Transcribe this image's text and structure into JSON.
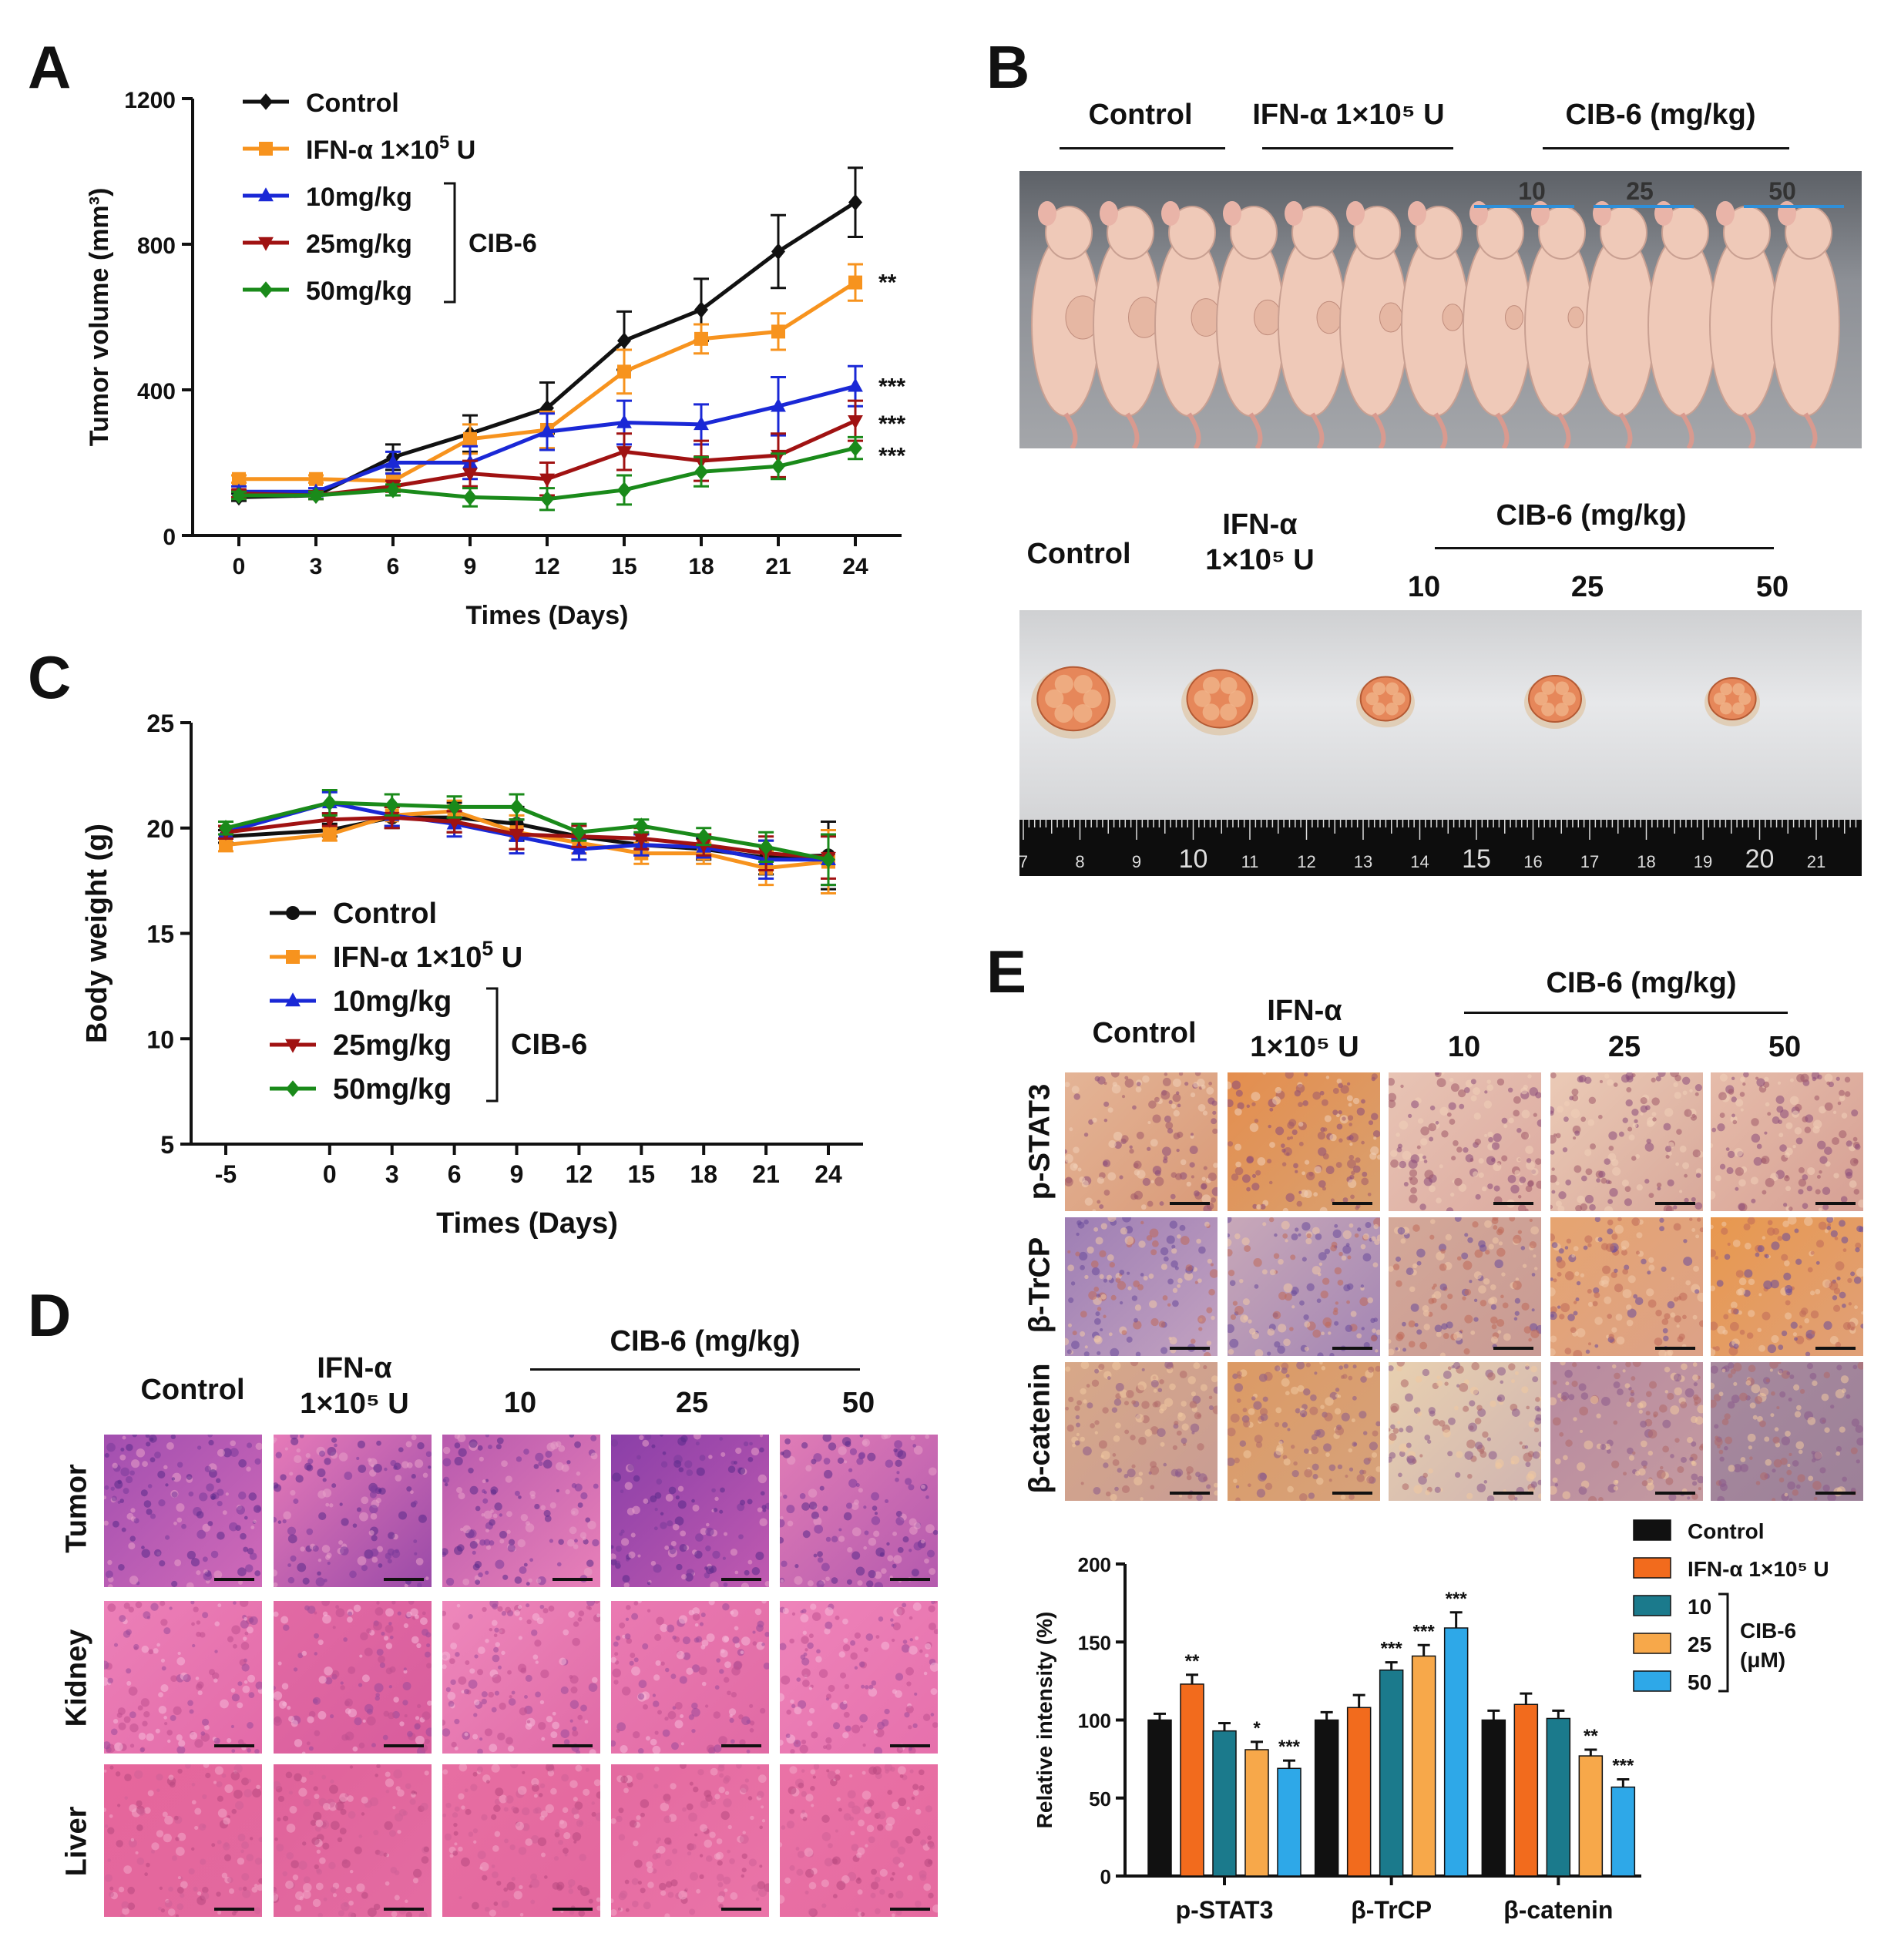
{
  "panels": {
    "A": {
      "letter": "A",
      "chart_data": {
        "type": "line",
        "xlabel": "Times (Days)",
        "ylabel": "Tumor volume (mm³)",
        "x": [
          0,
          3,
          6,
          9,
          12,
          15,
          18,
          21,
          24
        ],
        "xticks": [
          "0",
          "3",
          "6",
          "9",
          "12",
          "15",
          "18",
          "21",
          "24"
        ],
        "yticks": [
          "0",
          "400",
          "800",
          "1200"
        ],
        "ylim": [
          0,
          1200
        ],
        "grid": false,
        "legend_position": "top-left",
        "bracket_label": "CIB-6",
        "series": [
          {
            "name": "Control",
            "color": "#111111",
            "marker": "diamond",
            "values": [
              105,
              110,
              215,
              280,
              350,
              535,
              620,
              780,
              915
            ],
            "err": [
              10,
              10,
              35,
              50,
              70,
              80,
              85,
              100,
              95
            ]
          },
          {
            "name_main": "IFN-α 1×10",
            "name_sup": "5",
            "name_tail": " U",
            "color": "#f7931e",
            "marker": "square",
            "values": [
              155,
              155,
              150,
              265,
              290,
              450,
              540,
              560,
              695
            ],
            "err": [
              10,
              10,
              20,
              40,
              50,
              60,
              40,
              50,
              50
            ]
          },
          {
            "name": "10mg/kg",
            "color": "#1a28d6",
            "marker": "triangle",
            "values": [
              120,
              120,
              200,
              200,
              285,
              310,
              305,
              355,
              410
            ],
            "err": [
              15,
              10,
              30,
              45,
              50,
              60,
              55,
              80,
              55
            ]
          },
          {
            "name": "25mg/kg",
            "color": "#a01212",
            "marker": "triangle-down",
            "values": [
              115,
              110,
              135,
              170,
              155,
              230,
              205,
              220,
              315
            ],
            "err": [
              10,
              10,
              15,
              35,
              45,
              50,
              55,
              60,
              55
            ]
          },
          {
            "name": "50mg/kg",
            "color": "#1a8a1a",
            "marker": "diamond",
            "values": [
              110,
              110,
              125,
              105,
              100,
              125,
              175,
              190,
              240
            ],
            "err": [
              10,
              10,
              15,
              25,
              30,
              40,
              40,
              35,
              30
            ]
          }
        ],
        "significance": [
          "**",
          "***",
          "***",
          "***"
        ]
      }
    },
    "B": {
      "letter": "B",
      "top_headers": [
        "Control",
        "IFN-α 1×10⁵ U",
        "CIB-6 (mg/kg)"
      ],
      "dose_labels": [
        "10",
        "25",
        "50"
      ],
      "bottom_headers": {
        "control": "Control",
        "ifn_line1": "IFN-α",
        "ifn_line2": "1×10⁵ U",
        "cib": "CIB-6 (mg/kg)"
      },
      "bottom_doses": [
        "10",
        "25",
        "50"
      ],
      "ruler_numbers": [
        "7",
        "8",
        "9",
        "10",
        "11",
        "12",
        "13",
        "14",
        "15",
        "16",
        "17",
        "18",
        "19",
        "20",
        "21"
      ]
    },
    "C": {
      "letter": "C",
      "chart_data": {
        "type": "line",
        "xlabel": "Times (Days)",
        "ylabel": "Body weight (g)",
        "x": [
          -5,
          0,
          3,
          6,
          9,
          12,
          15,
          18,
          21,
          24
        ],
        "xticks": [
          "-5",
          "0",
          "3",
          "6",
          "9",
          "12",
          "15",
          "18",
          "21",
          "24"
        ],
        "yticks": [
          "5",
          "10",
          "15",
          "20",
          "25"
        ],
        "ylim": [
          5,
          25
        ],
        "grid": false,
        "legend_position": "bottom-left",
        "bracket_label": "CIB-6",
        "series": [
          {
            "name": "Control",
            "color": "#111111",
            "marker": "circle",
            "values": [
              19.6,
              19.9,
              20.5,
              20.5,
              20.2,
              19.6,
              19.2,
              19.0,
              18.6,
              18.7
            ],
            "err": [
              0.3,
              0.3,
              0.5,
              0.7,
              0.8,
              0.5,
              0.5,
              0.5,
              0.8,
              1.6
            ]
          },
          {
            "name_main": "IFN-α 1×10",
            "name_sup": "5",
            "name_tail": " U",
            "color": "#f7931e",
            "marker": "square",
            "values": [
              19.2,
              19.7,
              20.6,
              20.8,
              19.8,
              19.3,
              18.8,
              18.8,
              18.1,
              18.4
            ],
            "err": [
              0.3,
              0.3,
              0.5,
              0.5,
              0.8,
              0.5,
              0.5,
              0.5,
              0.8,
              1.5
            ]
          },
          {
            "name": "10mg/kg",
            "color": "#1a28d6",
            "marker": "triangle",
            "values": [
              19.8,
              21.2,
              20.6,
              20.2,
              19.6,
              19.0,
              19.2,
              19.1,
              18.5,
              18.5
            ],
            "err": [
              0.3,
              0.5,
              0.5,
              0.6,
              0.8,
              0.5,
              0.5,
              0.5,
              0.9,
              1.2
            ]
          },
          {
            "name": "25mg/kg",
            "color": "#a01212",
            "marker": "triangle-down",
            "values": [
              19.8,
              20.4,
              20.5,
              20.3,
              19.7,
              19.6,
              19.5,
              19.2,
              18.8,
              18.6
            ],
            "err": [
              0.3,
              0.3,
              0.5,
              0.5,
              0.7,
              0.5,
              0.5,
              0.5,
              0.8,
              1.0
            ]
          },
          {
            "name": "50mg/kg",
            "color": "#1a8a1a",
            "marker": "diamond",
            "values": [
              20.0,
              21.2,
              21.1,
              21.0,
              21.0,
              19.8,
              20.1,
              19.6,
              19.1,
              18.5
            ],
            "err": [
              0.3,
              0.6,
              0.5,
              0.5,
              0.6,
              0.4,
              0.3,
              0.4,
              0.7,
              1.2
            ]
          }
        ]
      }
    },
    "D": {
      "letter": "D",
      "headers": {
        "control": "Control",
        "ifn_line1": "IFN-α",
        "ifn_line2": "1×10⁵ U",
        "cib": "CIB-6 (mg/kg)"
      },
      "doses": [
        "10",
        "25",
        "50"
      ],
      "rows": [
        "Tumor",
        "Kidney",
        "Liver"
      ]
    },
    "E": {
      "letter": "E",
      "headers": {
        "control": "Control",
        "ifn_line1": "IFN-α",
        "ifn_line2": "1×10⁵ U",
        "cib": "CIB-6 (mg/kg)"
      },
      "doses": [
        "10",
        "25",
        "50"
      ],
      "rows": [
        "p-STAT3",
        "β-TrCP",
        "β-catenin"
      ],
      "chart_data": {
        "type": "bar",
        "ylabel": "Relative intensity (%)",
        "categories": [
          "p-STAT3",
          "β-TrCP",
          "β-catenin"
        ],
        "yticks": [
          "0",
          "50",
          "100",
          "150",
          "200"
        ],
        "ylim": [
          0,
          200
        ],
        "grid": false,
        "legend_position": "top-right",
        "bracket_label_line1": "CIB-6",
        "bracket_label_line2": "(μM)",
        "legend_labels": [
          "Control",
          "IFN-α 1×10⁵ U",
          "10",
          "25",
          "50"
        ],
        "series": [
          {
            "name": "Control",
            "color": "#111111",
            "values": [
              100,
              100,
              100
            ],
            "err": [
              4,
              5,
              6
            ],
            "sig": [
              "",
              "",
              ""
            ]
          },
          {
            "name": "IFN-α 1×10⁵ U",
            "color": "#f26b1d",
            "values": [
              123,
              108,
              110
            ],
            "err": [
              6,
              8,
              7
            ],
            "sig": [
              "**",
              "",
              ""
            ]
          },
          {
            "name": "10",
            "color": "#1b7a8c",
            "values": [
              93,
              132,
              101
            ],
            "err": [
              5,
              5,
              5
            ],
            "sig": [
              "",
              "***",
              ""
            ]
          },
          {
            "name": "25",
            "color": "#f7a84a",
            "values": [
              81,
              141,
              77
            ],
            "err": [
              5,
              7,
              4
            ],
            "sig": [
              "*",
              "***",
              "**"
            ]
          },
          {
            "name": "50",
            "color": "#2ea8e8",
            "values": [
              69,
              159,
              57
            ],
            "err": [
              5,
              10,
              5
            ],
            "sig": [
              "***",
              "***",
              "***"
            ]
          }
        ]
      }
    }
  },
  "colors": {
    "he_tissue": "#e86aa8",
    "he_dense": "#8a3fa8",
    "ihc_base": "#e9c7a8",
    "ihc_purple": "#9a6aa8",
    "ihc_orange": "#e79a58",
    "photo_bg": "#7c7c7c",
    "mouse": "#efc9b8",
    "tumor": "#e6875a"
  }
}
